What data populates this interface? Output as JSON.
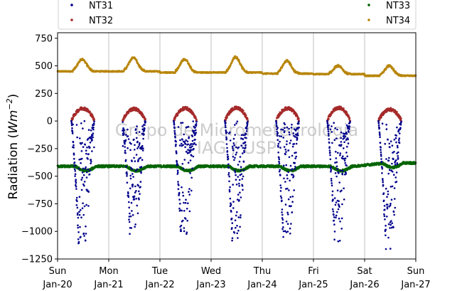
{
  "chart_data": {
    "type": "scatter",
    "title": "",
    "xlabel": "",
    "ylabel": "Radiation (",
    "ylabel_unit_base": "Wm",
    "ylabel_unit_exp": "−2",
    "ylabel_close": ")",
    "ylim": [
      -1250,
      800
    ],
    "xlim": [
      0,
      7
    ],
    "yticks": [
      -1250,
      -1000,
      -750,
      -500,
      -250,
      0,
      250,
      500,
      750
    ],
    "ytick_labels": [
      "−1250",
      "−1000",
      "−750",
      "−500",
      "−250",
      "0",
      "250",
      "500",
      "750"
    ],
    "xticks": [
      {
        "x": 0,
        "day": "Sun",
        "date": "Jan-20"
      },
      {
        "x": 1,
        "day": "Mon",
        "date": "Jan-21"
      },
      {
        "x": 2,
        "day": "Tue",
        "date": "Jan-22"
      },
      {
        "x": 3,
        "day": "Wed",
        "date": "Jan-23"
      },
      {
        "x": 4,
        "day": "Thu",
        "date": "Jan-24"
      },
      {
        "x": 5,
        "day": "Fri",
        "date": "Jan-25"
      },
      {
        "x": 6,
        "day": "Sat",
        "date": "Jan-26"
      },
      {
        "x": 7,
        "day": "Sun",
        "date": "Jan-27"
      }
    ],
    "grid": "vertical",
    "legend_position": "top",
    "watermark": [
      "Grupo de Micrometeorologia",
      "IAG / USP"
    ],
    "series": [
      {
        "name": "NT31",
        "color": "#00008b",
        "day_minima": [
          -1180,
          -1080,
          -1100,
          -1130,
          -1170,
          -1130,
          -1160
        ],
        "baseline": 0
      },
      {
        "name": "NT32",
        "color": "#a52a2a",
        "day_peaks": [
          115,
          110,
          115,
          120,
          115,
          120,
          105
        ],
        "baseline": 0
      },
      {
        "name": "NT33",
        "color": "#006400",
        "night_level": -410,
        "day_level": -450,
        "late_level": -380
      },
      {
        "name": "NT34",
        "color": "#b8860b",
        "day_peaks": [
          560,
          575,
          560,
          580,
          545,
          500,
          500
        ],
        "night_levels": [
          450,
          450,
          440,
          440,
          430,
          425,
          410
        ]
      }
    ]
  }
}
